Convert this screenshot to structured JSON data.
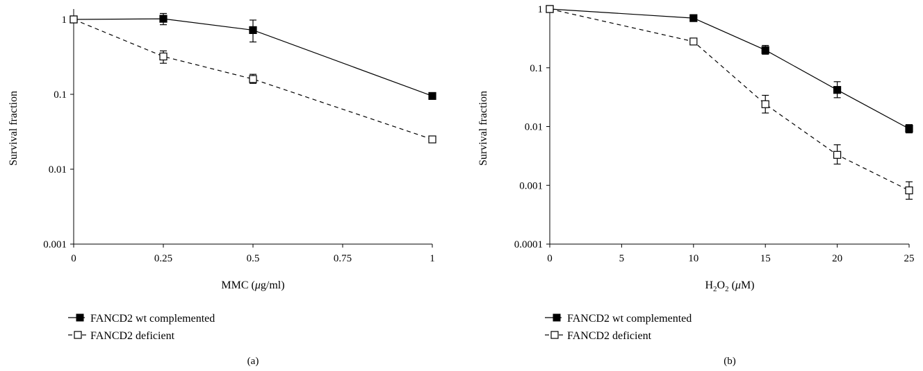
{
  "chart_data": [
    {
      "type": "line",
      "panel": "(a)",
      "xlabel_main": "MMC (",
      "xlabel_greek": "μ",
      "xlabel_tail": "g/ml)",
      "ylabel": "Survival fraction",
      "xlim": [
        0,
        1
      ],
      "ylim": [
        0.001,
        1
      ],
      "yscale": "log",
      "xticks": [
        0,
        0.25,
        0.5,
        0.75,
        1
      ],
      "xtick_labels": [
        "0",
        "0.25",
        "0.5",
        "0.75",
        "1"
      ],
      "yticks": [
        1,
        0.1,
        0.01,
        0.001
      ],
      "ytick_labels": [
        "1",
        "0.1",
        "0.01",
        "0.001"
      ],
      "legend_position": "bottom-left",
      "series": [
        {
          "name": "FANCD2 wt complemented",
          "marker": "filled-square",
          "line": "solid",
          "x": [
            0,
            0.25,
            0.5,
            1
          ],
          "y": [
            1,
            1.02,
            0.72,
            0.095
          ],
          "err_low": [
            null,
            0.85,
            0.5,
            null
          ],
          "err_high": [
            null,
            1.2,
            0.98,
            null
          ]
        },
        {
          "name": "FANCD2 deficient",
          "marker": "open-square",
          "line": "dashed",
          "x": [
            0,
            0.25,
            0.5,
            1
          ],
          "y": [
            1,
            0.32,
            0.16,
            0.025
          ],
          "err_low": [
            null,
            0.26,
            0.14,
            null
          ],
          "err_high": [
            null,
            0.38,
            0.185,
            null
          ]
        }
      ]
    },
    {
      "type": "line",
      "panel": "(b)",
      "xlabel_main": "H",
      "xlabel_sub1": "2",
      "xlabel_mid": "O",
      "xlabel_sub2": "2",
      "xlabel_open": " (",
      "xlabel_greek": "μ",
      "xlabel_tail": "M)",
      "ylabel": "Survival fraction",
      "xlim": [
        0,
        25
      ],
      "ylim": [
        0.0001,
        1
      ],
      "yscale": "log",
      "xticks": [
        0,
        5,
        10,
        15,
        20,
        25
      ],
      "xtick_labels": [
        "0",
        "5",
        "10",
        "15",
        "20",
        "25"
      ],
      "yticks": [
        1,
        0.1,
        0.01,
        0.001,
        0.0001
      ],
      "ytick_labels": [
        "1",
        "0.1",
        "0.01",
        "0.001",
        "0.0001"
      ],
      "legend_position": "bottom-left",
      "series": [
        {
          "name": "FANCD2 wt complemented",
          "marker": "filled-square",
          "line": "solid",
          "x": [
            0,
            10,
            15,
            20,
            25
          ],
          "y": [
            1,
            0.7,
            0.2,
            0.042,
            0.0092
          ],
          "err_low": [
            null,
            null,
            0.17,
            0.031,
            0.0078
          ],
          "err_high": [
            null,
            null,
            0.24,
            0.058,
            0.0108
          ]
        },
        {
          "name": "FANCD2 deficient",
          "marker": "open-square",
          "line": "dashed",
          "x": [
            0,
            10,
            15,
            20,
            25
          ],
          "y": [
            1,
            0.28,
            0.024,
            0.0033,
            0.00082
          ],
          "err_low": [
            null,
            null,
            0.017,
            0.0023,
            0.00058
          ],
          "err_high": [
            null,
            null,
            0.034,
            0.0049,
            0.00115
          ]
        }
      ]
    }
  ]
}
